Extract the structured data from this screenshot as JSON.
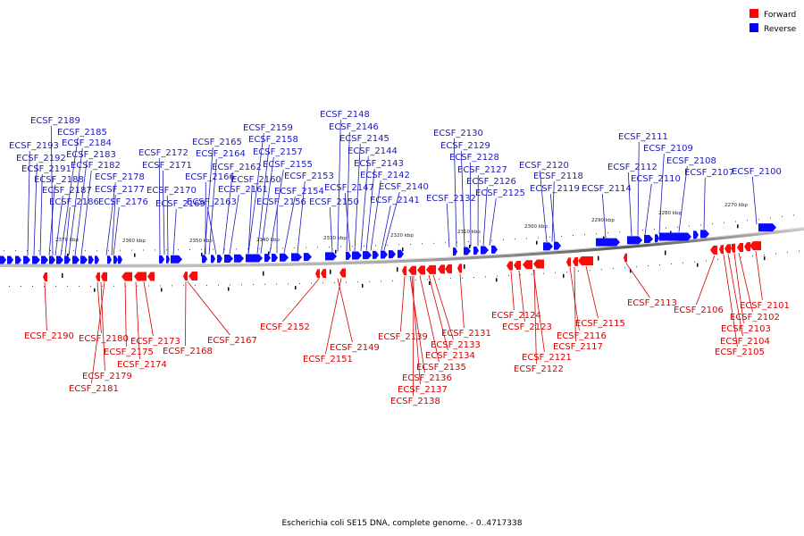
{
  "legend": [
    {
      "label": "Forward",
      "color": "#ff0000"
    },
    {
      "label": "Reverse",
      "color": "#0000ff"
    }
  ],
  "caption": "Escherichia coli SE15 DNA, complete genome. - 0..4717338",
  "scale_labels": [
    "2370 kbp",
    "2360 kbp",
    "2350 kbp",
    "2340 kbp",
    "2330 kbp",
    "2320 kbp",
    "2310 kbp",
    "2300 kbp",
    "2290 kbp",
    "2280 kbp",
    "2270 kbp"
  ],
  "reverse_genes": [
    "ECSF_2189",
    "ECSF_2185",
    "ECSF_2184",
    "ECSF_2193",
    "ECSF_2183",
    "ECSF_2192",
    "ECSF_2182",
    "ECSF_2191",
    "ECSF_2178",
    "ECSF_2188",
    "ECSF_2177",
    "ECSF_2187",
    "ECSF_2186",
    "ECSF_2176",
    "ECSF_2172",
    "ECSF_2171",
    "ECSF_2170",
    "ECSF_2169",
    "ECSF_2165",
    "ECSF_2164",
    "ECSF_2162",
    "ECSF_2166",
    "ECSF_2161",
    "ECSF_2163",
    "ECSF_2159",
    "ECSF_2158",
    "ECSF_2157",
    "ECSF_2160",
    "ECSF_2155",
    "ECSF_2154",
    "ECSF_2156",
    "ECSF_2153",
    "ECSF_2150",
    "ECSF_2148",
    "ECSF_2146",
    "ECSF_2145",
    "ECSF_2144",
    "ECSF_2143",
    "ECSF_2142",
    "ECSF_2147",
    "ECSF_2140",
    "ECSF_2141",
    "ECSF_2130",
    "ECSF_2129",
    "ECSF_2128",
    "ECSF_2127",
    "ECSF_2126",
    "ECSF_2125",
    "ECSF_2132",
    "ECSF_2120",
    "ECSF_2118",
    "ECSF_2119",
    "ECSF_2114",
    "ECSF_2111",
    "ECSF_2109",
    "ECSF_2112",
    "ECSF_2108",
    "ECSF_2110",
    "ECSF_2107",
    "ECSF_2100"
  ],
  "forward_genes": [
    "ECSF_2190",
    "ECSF_2180",
    "ECSF_2179",
    "ECSF_2181",
    "ECSF_2175",
    "ECSF_2173",
    "ECSF_2174",
    "ECSF_2168",
    "ECSF_2167",
    "ECSF_2152",
    "ECSF_2149",
    "ECSF_2151",
    "ECSF_2139",
    "ECSF_2136",
    "ECSF_2137",
    "ECSF_2138",
    "ECSF_2135",
    "ECSF_2134",
    "ECSF_2133",
    "ECSF_2131",
    "ECSF_2124",
    "ECSF_2123",
    "ECSF_2121",
    "ECSF_2122",
    "ECSF_2116",
    "ECSF_2117",
    "ECSF_2115",
    "ECSF_2113",
    "ECSF_2106",
    "ECSF_2101",
    "ECSF_2102",
    "ECSF_2103",
    "ECSF_2104",
    "ECSF_2105"
  ]
}
